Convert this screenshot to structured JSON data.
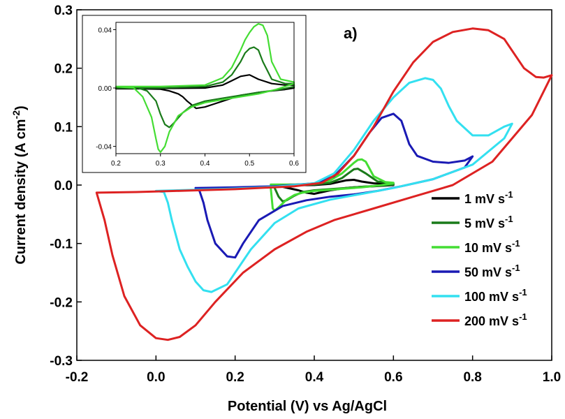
{
  "chart_data": [
    {
      "type": "line",
      "panel_label": "a)",
      "xlabel": "Potential (V) vs Ag/AgCl",
      "ylabel_main": "Current density (A cm",
      "ylabel_sup": "-2",
      "ylabel_tail": ")",
      "xlim": [
        -0.2,
        1.0
      ],
      "ylim": [
        -0.3,
        0.3
      ],
      "xticks": [
        -0.2,
        0.0,
        0.2,
        0.4,
        0.6,
        0.8,
        1.0
      ],
      "xtick_labels": [
        "-0.2",
        "0.0",
        "0.2",
        "0.4",
        "0.6",
        "0.8",
        "1.0"
      ],
      "yticks": [
        -0.3,
        -0.2,
        -0.1,
        0.0,
        0.1,
        0.2,
        0.3
      ],
      "ytick_labels": [
        "-0.3",
        "-0.2",
        "-0.1",
        "0.0",
        "0.1",
        "0.2",
        "0.3"
      ],
      "legend_position": "lower-right",
      "grid": false,
      "series": [
        {
          "name": "1 mV s",
          "sup": "-1",
          "color": "#000000",
          "x": [
            0.3,
            0.35,
            0.4,
            0.44,
            0.46,
            0.48,
            0.5,
            0.52,
            0.55,
            0.58,
            0.6,
            0.6,
            0.58,
            0.55,
            0.52,
            0.5,
            0.48,
            0.46,
            0.44,
            0.42,
            0.4,
            0.38,
            0.36,
            0.34,
            0.32,
            0.3
          ],
          "y": [
            -0.0005,
            -0.0003,
            0.0,
            0.002,
            0.005,
            0.008,
            0.009,
            0.006,
            0.003,
            0.002,
            0.002,
            0.0,
            -0.001,
            -0.002,
            -0.003,
            -0.004,
            -0.005,
            -0.007,
            -0.009,
            -0.012,
            -0.015,
            -0.013,
            -0.009,
            -0.006,
            -0.003,
            -0.0005
          ]
        },
        {
          "name": "5 mV s",
          "sup": "-1",
          "color": "#1a7a1a",
          "x": [
            0.3,
            0.35,
            0.4,
            0.44,
            0.47,
            0.49,
            0.5,
            0.51,
            0.53,
            0.56,
            0.6,
            0.6,
            0.57,
            0.52,
            0.48,
            0.44,
            0.4,
            0.37,
            0.35,
            0.33,
            0.32,
            0.31,
            0.3
          ],
          "y": [
            0.0,
            0.0,
            0.001,
            0.004,
            0.012,
            0.022,
            0.027,
            0.028,
            0.02,
            0.006,
            0.003,
            0.001,
            -0.001,
            -0.003,
            -0.005,
            -0.007,
            -0.009,
            -0.012,
            -0.018,
            -0.026,
            -0.028,
            -0.02,
            -0.005
          ]
        },
        {
          "name": "10 mV s",
          "sup": "-1",
          "color": "#44dd33",
          "x": [
            0.29,
            0.35,
            0.4,
            0.44,
            0.47,
            0.49,
            0.5,
            0.51,
            0.52,
            0.53,
            0.55,
            0.58,
            0.6,
            0.6,
            0.56,
            0.52,
            0.48,
            0.44,
            0.4,
            0.37,
            0.35,
            0.33,
            0.31,
            0.3,
            0.295,
            0.29
          ],
          "y": [
            0.001,
            0.001,
            0.002,
            0.008,
            0.02,
            0.032,
            0.038,
            0.043,
            0.044,
            0.04,
            0.015,
            0.005,
            0.004,
            0.003,
            -0.001,
            -0.004,
            -0.006,
            -0.008,
            -0.01,
            -0.013,
            -0.017,
            -0.025,
            -0.038,
            -0.044,
            -0.04,
            -0.005
          ]
        },
        {
          "name": "50 mV s",
          "sup": "-1",
          "color": "#1a1ab4",
          "x": [
            0.1,
            0.2,
            0.3,
            0.4,
            0.45,
            0.5,
            0.54,
            0.57,
            0.6,
            0.62,
            0.64,
            0.66,
            0.7,
            0.74,
            0.78,
            0.8,
            0.78,
            0.7,
            0.62,
            0.56,
            0.5,
            0.44,
            0.38,
            0.32,
            0.26,
            0.22,
            0.2,
            0.18,
            0.15,
            0.13,
            0.12,
            0.11,
            0.1
          ],
          "y": [
            -0.005,
            -0.004,
            -0.002,
            0.003,
            0.015,
            0.05,
            0.09,
            0.115,
            0.122,
            0.11,
            0.07,
            0.05,
            0.04,
            0.038,
            0.042,
            0.049,
            0.03,
            0.01,
            -0.002,
            -0.01,
            -0.016,
            -0.02,
            -0.026,
            -0.036,
            -0.06,
            -0.1,
            -0.124,
            -0.122,
            -0.1,
            -0.06,
            -0.03,
            -0.01,
            -0.005
          ]
        },
        {
          "name": "100 mV s",
          "sup": "-1",
          "color": "#33e0f0",
          "x": [
            0.0,
            0.1,
            0.2,
            0.3,
            0.4,
            0.45,
            0.5,
            0.55,
            0.6,
            0.64,
            0.68,
            0.7,
            0.72,
            0.74,
            0.76,
            0.8,
            0.84,
            0.88,
            0.9,
            0.88,
            0.8,
            0.7,
            0.6,
            0.52,
            0.44,
            0.36,
            0.3,
            0.24,
            0.18,
            0.14,
            0.12,
            0.1,
            0.08,
            0.06,
            0.04,
            0.03,
            0.02,
            0.0
          ],
          "y": [
            -0.01,
            -0.008,
            -0.006,
            -0.003,
            0.003,
            0.02,
            0.06,
            0.11,
            0.15,
            0.175,
            0.183,
            0.18,
            0.165,
            0.135,
            0.11,
            0.085,
            0.085,
            0.1,
            0.105,
            0.08,
            0.035,
            0.01,
            -0.005,
            -0.015,
            -0.025,
            -0.04,
            -0.065,
            -0.11,
            -0.17,
            -0.183,
            -0.18,
            -0.165,
            -0.14,
            -0.11,
            -0.06,
            -0.03,
            -0.012,
            -0.01
          ]
        },
        {
          "name": "200 mV s",
          "sup": "-1",
          "color": "#dd2222",
          "x": [
            -0.15,
            -0.05,
            0.05,
            0.2,
            0.35,
            0.42,
            0.46,
            0.5,
            0.55,
            0.6,
            0.65,
            0.7,
            0.75,
            0.8,
            0.84,
            0.88,
            0.9,
            0.93,
            0.96,
            0.98,
            1.0,
            0.95,
            0.85,
            0.75,
            0.65,
            0.55,
            0.45,
            0.38,
            0.3,
            0.22,
            0.15,
            0.1,
            0.06,
            0.03,
            0.0,
            -0.04,
            -0.08,
            -0.11,
            -0.13,
            -0.145,
            -0.15
          ],
          "y": [
            -0.013,
            -0.012,
            -0.01,
            -0.007,
            -0.002,
            0.004,
            0.02,
            0.05,
            0.1,
            0.16,
            0.21,
            0.245,
            0.262,
            0.268,
            0.265,
            0.25,
            0.23,
            0.2,
            0.185,
            0.184,
            0.188,
            0.12,
            0.04,
            0.0,
            -0.02,
            -0.04,
            -0.06,
            -0.08,
            -0.11,
            -0.15,
            -0.2,
            -0.24,
            -0.26,
            -0.265,
            -0.262,
            -0.24,
            -0.19,
            -0.12,
            -0.06,
            -0.025,
            -0.013
          ]
        }
      ]
    },
    {
      "type": "line",
      "role": "inset",
      "xlim": [
        0.2,
        0.6
      ],
      "ylim": [
        -0.045,
        0.045
      ],
      "xticks": [
        0.2,
        0.3,
        0.4,
        0.5,
        0.6
      ],
      "xtick_labels": [
        "0.2",
        "0.3",
        "0.4",
        "0.5",
        "0.6"
      ],
      "yticks": [
        -0.04,
        0.0,
        0.04
      ],
      "ytick_labels": [
        "-0.04",
        "0.00",
        "0.04"
      ],
      "grid": false,
      "series": [
        {
          "color": "#000000",
          "x": [
            0.2,
            0.3,
            0.4,
            0.44,
            0.46,
            0.48,
            0.5,
            0.52,
            0.55,
            0.58,
            0.6,
            0.6,
            0.58,
            0.55,
            0.52,
            0.5,
            0.48,
            0.46,
            0.44,
            0.42,
            0.4,
            0.38,
            0.36,
            0.35,
            0.34,
            0.32,
            0.3,
            0.25,
            0.2
          ],
          "y": [
            -0.0005,
            -0.0003,
            0.0,
            0.002,
            0.005,
            0.008,
            0.009,
            0.006,
            0.003,
            0.002,
            0.002,
            0.0,
            -0.001,
            -0.002,
            -0.003,
            -0.004,
            -0.005,
            -0.007,
            -0.009,
            -0.011,
            -0.013,
            -0.014,
            -0.009,
            -0.006,
            -0.004,
            -0.002,
            -0.0008,
            -0.0005,
            -0.0005
          ]
        },
        {
          "color": "#1a7a1a",
          "x": [
            0.2,
            0.3,
            0.4,
            0.44,
            0.46,
            0.48,
            0.49,
            0.5,
            0.51,
            0.52,
            0.53,
            0.55,
            0.58,
            0.6,
            0.6,
            0.57,
            0.52,
            0.48,
            0.44,
            0.4,
            0.37,
            0.35,
            0.33,
            0.32,
            0.31,
            0.3,
            0.29,
            0.27,
            0.25,
            0.2
          ],
          "y": [
            0.0,
            0.0,
            0.001,
            0.004,
            0.009,
            0.018,
            0.024,
            0.027,
            0.028,
            0.026,
            0.018,
            0.006,
            0.003,
            0.003,
            0.001,
            -0.001,
            -0.003,
            -0.005,
            -0.007,
            -0.009,
            -0.012,
            -0.017,
            -0.024,
            -0.027,
            -0.025,
            -0.018,
            -0.009,
            -0.002,
            0.0,
            0.0
          ]
        },
        {
          "color": "#44dd33",
          "x": [
            0.2,
            0.3,
            0.4,
            0.44,
            0.46,
            0.48,
            0.49,
            0.5,
            0.51,
            0.52,
            0.53,
            0.54,
            0.55,
            0.57,
            0.6,
            0.6,
            0.56,
            0.52,
            0.48,
            0.44,
            0.4,
            0.37,
            0.34,
            0.32,
            0.31,
            0.3,
            0.295,
            0.29,
            0.28,
            0.26,
            0.24,
            0.2
          ],
          "y": [
            0.001,
            0.001,
            0.002,
            0.007,
            0.014,
            0.026,
            0.033,
            0.038,
            0.042,
            0.044,
            0.043,
            0.036,
            0.018,
            0.006,
            0.004,
            0.003,
            -0.001,
            -0.004,
            -0.006,
            -0.008,
            -0.01,
            -0.013,
            -0.019,
            -0.03,
            -0.04,
            -0.044,
            -0.042,
            -0.035,
            -0.02,
            -0.006,
            0.0,
            0.001
          ]
        }
      ]
    }
  ]
}
